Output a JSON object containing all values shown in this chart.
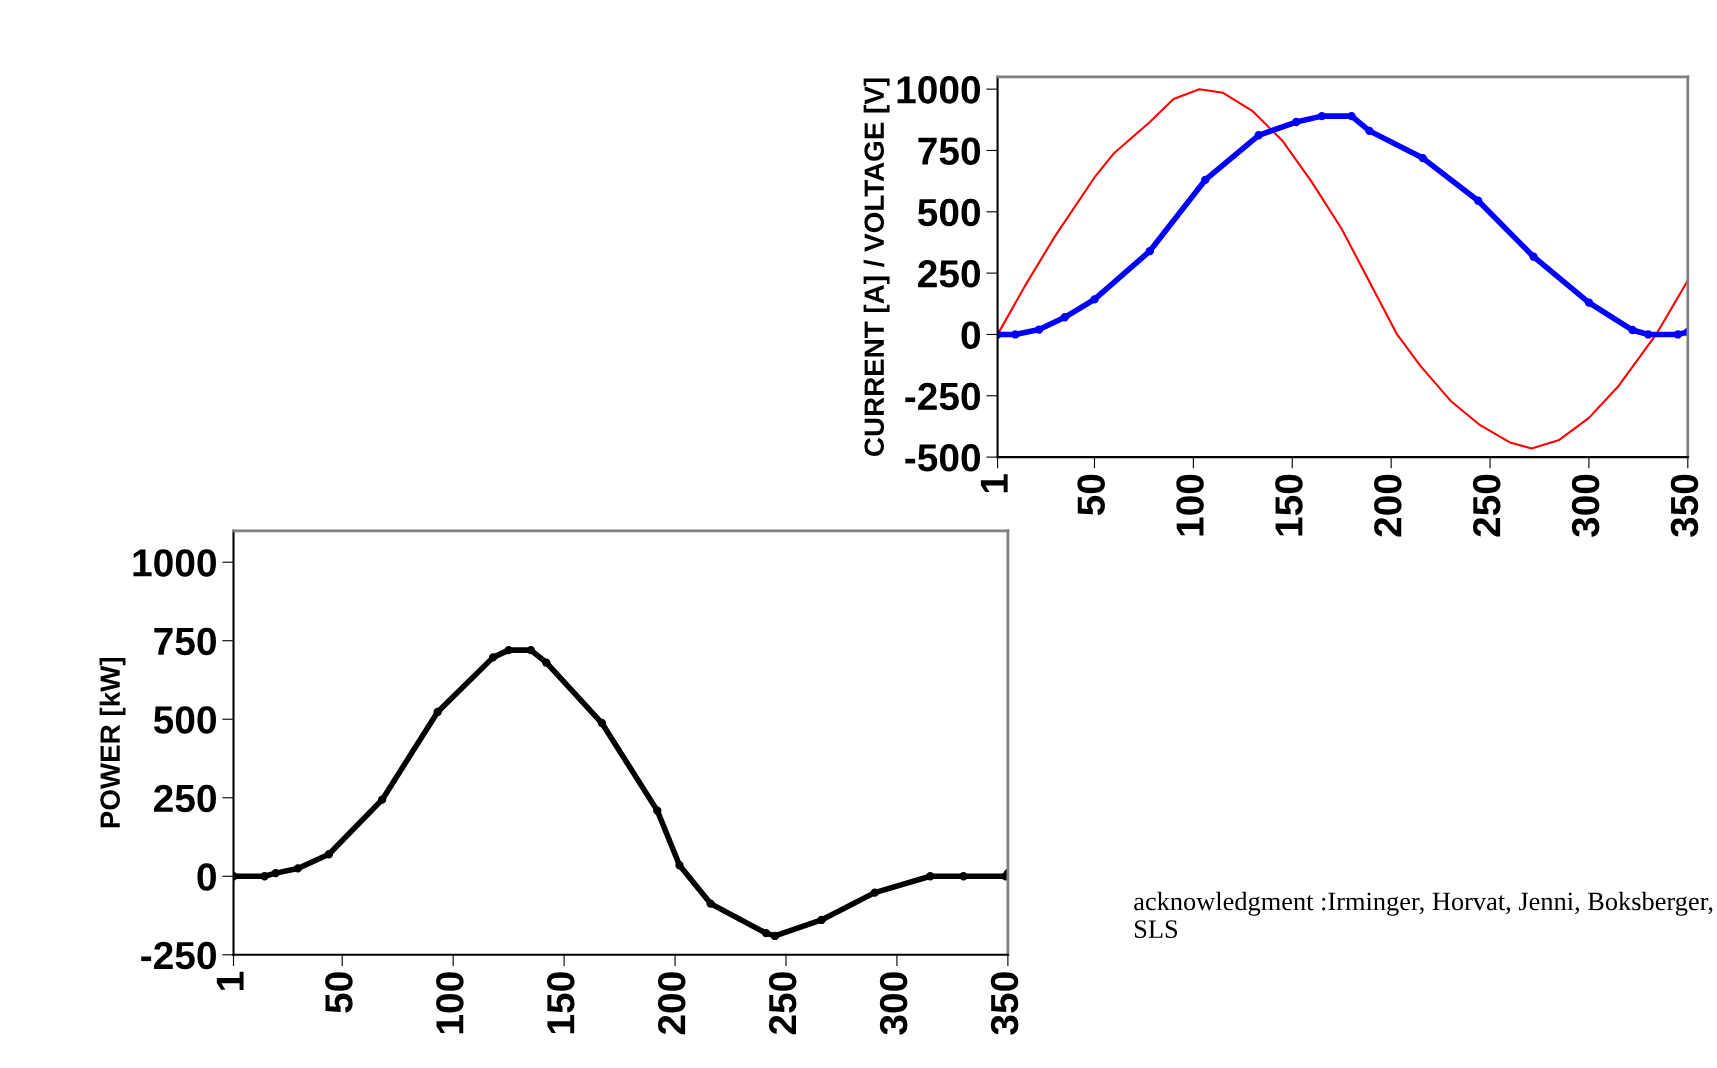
{
  "chart_data": [
    {
      "type": "line",
      "ylabel": "CURRENT [A] / VOLTAGE [V]",
      "xlim": [
        1,
        350
      ],
      "ylim": [
        -500,
        1050
      ],
      "xticks": [
        1,
        50,
        100,
        150,
        200,
        250,
        300,
        350
      ],
      "yticks": [
        -500,
        -250,
        0,
        250,
        500,
        750,
        1000
      ],
      "grid": false,
      "legend": false,
      "series": [
        {
          "color": "#ff0000",
          "marker": "none",
          "x": [
            1,
            15,
            30,
            50,
            60,
            78,
            90,
            103,
            115,
            130,
            145,
            160,
            175,
            190,
            203,
            215,
            230,
            245,
            260,
            271,
            285,
            300,
            315,
            334,
            350
          ],
          "values": [
            0,
            200,
            400,
            640,
            740,
            866,
            960,
            1000,
            985,
            910,
            790,
            620,
            430,
            200,
            0,
            -130,
            -270,
            -370,
            -440,
            -465,
            -430,
            -340,
            -210,
            0,
            220
          ]
        },
        {
          "color": "#0000ff",
          "marker": "circle",
          "x": [
            1,
            10,
            22,
            35,
            50,
            78,
            106,
            133,
            152,
            165,
            180,
            189,
            216,
            244,
            272,
            300,
            322,
            330,
            345,
            350
          ],
          "values": [
            0,
            0,
            20,
            70,
            143,
            340,
            630,
            812,
            866,
            890,
            890,
            830,
            719,
            545,
            317,
            130,
            18,
            0,
            0,
            10
          ]
        }
      ]
    },
    {
      "type": "line",
      "ylabel": "POWER [kW]",
      "xlim": [
        1,
        350
      ],
      "ylim": [
        -250,
        1100
      ],
      "xticks": [
        1,
        50,
        100,
        150,
        200,
        250,
        300,
        350
      ],
      "yticks": [
        -250,
        0,
        250,
        500,
        750,
        1000
      ],
      "grid": false,
      "legend": false,
      "annotations": [
        "acknowledgment :Irminger, Horvat, Jenni, Boksberger, SLS"
      ],
      "series": [
        {
          "color": "#000000",
          "marker": "circle",
          "x": [
            1,
            15,
            20,
            30,
            44,
            68,
            93,
            118,
            125,
            135,
            142,
            167,
            192,
            202,
            216,
            241,
            245,
            266,
            290,
            315,
            330,
            349,
            350
          ],
          "values": [
            0,
            0,
            10,
            25,
            70,
            244,
            523,
            697,
            720,
            720,
            680,
            488,
            209,
            35,
            -87,
            -181,
            -190,
            -139,
            -52,
            0,
            0,
            0,
            10
          ]
        }
      ]
    }
  ]
}
